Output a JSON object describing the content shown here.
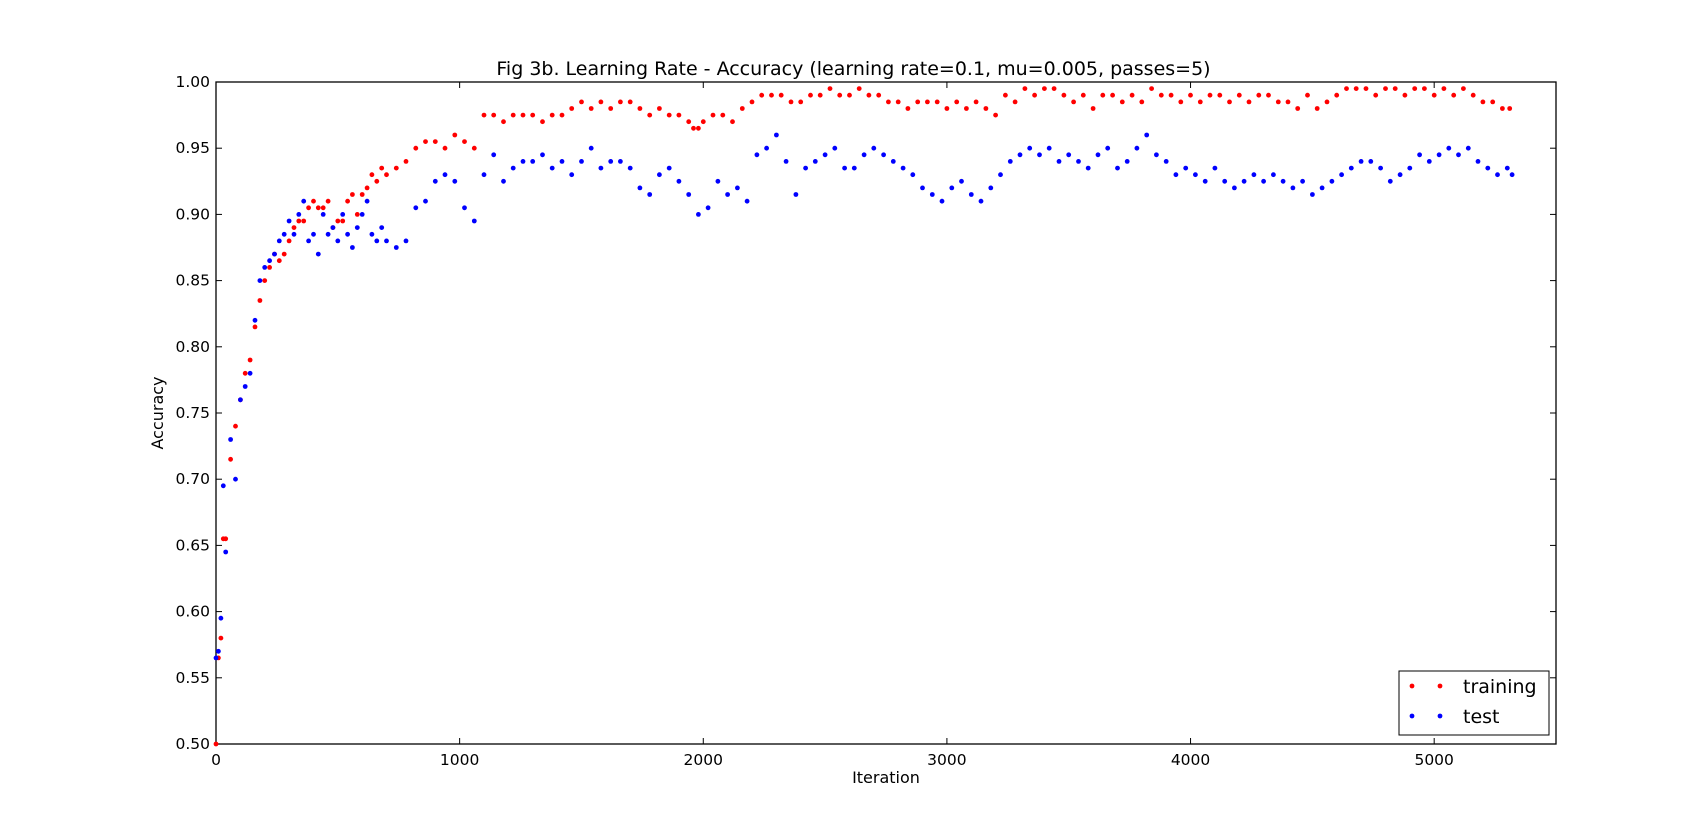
{
  "chart_data": {
    "type": "scatter",
    "title": "Fig 3b. Learning Rate - Accuracy (learning rate=0.1, mu=0.005, passes=5)",
    "xlabel": "Iteration",
    "ylabel": "Accuracy",
    "xlim": [
      0,
      5500
    ],
    "ylim": [
      0.5,
      1.0
    ],
    "x_ticks": [
      0,
      1000,
      2000,
      3000,
      4000,
      5000
    ],
    "x_tick_labels": [
      "0",
      "1000",
      "2000",
      "3000",
      "4000",
      "5000"
    ],
    "y_ticks": [
      0.5,
      0.55,
      0.6,
      0.65,
      0.7,
      0.75,
      0.8,
      0.85,
      0.9,
      0.95,
      1.0
    ],
    "y_tick_labels": [
      "0.50",
      "0.55",
      "0.60",
      "0.65",
      "0.70",
      "0.75",
      "0.80",
      "0.85",
      "0.90",
      "0.95",
      "1.00"
    ],
    "grid": false,
    "legend_position": "bottom-right",
    "series": [
      {
        "name": "training",
        "color": "#ff0000",
        "x": [
          0,
          10,
          20,
          30,
          40,
          60,
          80,
          100,
          120,
          140,
          160,
          180,
          200,
          220,
          240,
          260,
          280,
          300,
          320,
          340,
          360,
          380,
          400,
          420,
          440,
          460,
          480,
          500,
          520,
          540,
          560,
          580,
          600,
          620,
          640,
          660,
          680,
          700,
          740,
          780,
          820,
          860,
          900,
          940,
          980,
          1020,
          1060,
          1100,
          1140,
          1180,
          1220,
          1260,
          1300,
          1340,
          1380,
          1420,
          1460,
          1500,
          1540,
          1580,
          1620,
          1660,
          1700,
          1740,
          1780,
          1820,
          1860,
          1900,
          1940,
          1960,
          1980,
          2000,
          2040,
          2080,
          2120,
          2160,
          2200,
          2240,
          2280,
          2320,
          2360,
          2400,
          2440,
          2480,
          2520,
          2560,
          2600,
          2640,
          2680,
          2720,
          2760,
          2800,
          2840,
          2880,
          2920,
          2960,
          3000,
          3040,
          3080,
          3120,
          3160,
          3200,
          3240,
          3280,
          3320,
          3360,
          3400,
          3440,
          3480,
          3520,
          3560,
          3600,
          3640,
          3680,
          3720,
          3760,
          3800,
          3840,
          3880,
          3920,
          3960,
          4000,
          4040,
          4080,
          4120,
          4160,
          4200,
          4240,
          4280,
          4320,
          4360,
          4400,
          4440,
          4480,
          4520,
          4560,
          4600,
          4640,
          4680,
          4720,
          4760,
          4800,
          4840,
          4880,
          4920,
          4960,
          5000,
          5040,
          5080,
          5120,
          5160,
          5200,
          5240,
          5280,
          5310
        ],
        "y": [
          0.5,
          0.565,
          0.58,
          0.655,
          0.655,
          0.715,
          0.74,
          0.76,
          0.78,
          0.79,
          0.815,
          0.835,
          0.85,
          0.86,
          0.87,
          0.865,
          0.87,
          0.88,
          0.89,
          0.895,
          0.895,
          0.905,
          0.91,
          0.905,
          0.905,
          0.91,
          0.89,
          0.895,
          0.895,
          0.91,
          0.915,
          0.9,
          0.915,
          0.92,
          0.93,
          0.925,
          0.935,
          0.93,
          0.935,
          0.94,
          0.95,
          0.955,
          0.955,
          0.95,
          0.96,
          0.955,
          0.95,
          0.975,
          0.975,
          0.97,
          0.975,
          0.975,
          0.975,
          0.97,
          0.975,
          0.975,
          0.98,
          0.985,
          0.98,
          0.985,
          0.98,
          0.985,
          0.985,
          0.98,
          0.975,
          0.98,
          0.975,
          0.975,
          0.97,
          0.965,
          0.965,
          0.97,
          0.975,
          0.975,
          0.97,
          0.98,
          0.985,
          0.99,
          0.99,
          0.99,
          0.985,
          0.985,
          0.99,
          0.99,
          0.995,
          0.99,
          0.99,
          0.995,
          0.99,
          0.99,
          0.985,
          0.985,
          0.98,
          0.985,
          0.985,
          0.985,
          0.98,
          0.985,
          0.98,
          0.985,
          0.98,
          0.975,
          0.99,
          0.985,
          0.995,
          0.99,
          0.995,
          0.995,
          0.99,
          0.985,
          0.99,
          0.98,
          0.99,
          0.99,
          0.985,
          0.99,
          0.985,
          0.995,
          0.99,
          0.99,
          0.985,
          0.99,
          0.985,
          0.99,
          0.99,
          0.985,
          0.99,
          0.985,
          0.99,
          0.99,
          0.985,
          0.985,
          0.98,
          0.99,
          0.98,
          0.985,
          0.99,
          0.995,
          0.995,
          0.995,
          0.99,
          0.995,
          0.995,
          0.99,
          0.995,
          0.995,
          0.99,
          0.995,
          0.99,
          0.995,
          0.99,
          0.985,
          0.985,
          0.98,
          0.98
        ]
      },
      {
        "name": "test",
        "color": "#0000ff",
        "x": [
          0,
          10,
          20,
          30,
          40,
          60,
          80,
          100,
          120,
          140,
          160,
          180,
          200,
          220,
          240,
          260,
          280,
          300,
          320,
          340,
          360,
          380,
          400,
          420,
          440,
          460,
          480,
          500,
          520,
          540,
          560,
          580,
          600,
          620,
          640,
          660,
          680,
          700,
          740,
          780,
          820,
          860,
          900,
          940,
          980,
          1020,
          1060,
          1100,
          1140,
          1180,
          1220,
          1260,
          1300,
          1340,
          1380,
          1420,
          1460,
          1500,
          1540,
          1580,
          1620,
          1660,
          1700,
          1740,
          1780,
          1820,
          1860,
          1900,
          1940,
          1980,
          2020,
          2060,
          2100,
          2140,
          2180,
          2220,
          2260,
          2300,
          2340,
          2380,
          2420,
          2460,
          2500,
          2540,
          2580,
          2620,
          2660,
          2700,
          2740,
          2780,
          2820,
          2860,
          2900,
          2940,
          2980,
          3020,
          3060,
          3100,
          3140,
          3180,
          3220,
          3260,
          3300,
          3340,
          3380,
          3420,
          3460,
          3500,
          3540,
          3580,
          3620,
          3660,
          3700,
          3740,
          3780,
          3820,
          3860,
          3900,
          3940,
          3980,
          4020,
          4060,
          4100,
          4140,
          4180,
          4220,
          4260,
          4300,
          4340,
          4380,
          4420,
          4460,
          4500,
          4540,
          4580,
          4620,
          4660,
          4700,
          4740,
          4780,
          4820,
          4860,
          4900,
          4940,
          4980,
          5020,
          5060,
          5100,
          5140,
          5180,
          5220,
          5260,
          5300,
          5320
        ],
        "y": [
          0.565,
          0.57,
          0.595,
          0.695,
          0.645,
          0.73,
          0.7,
          0.76,
          0.77,
          0.78,
          0.82,
          0.85,
          0.86,
          0.865,
          0.87,
          0.88,
          0.885,
          0.895,
          0.885,
          0.9,
          0.91,
          0.88,
          0.885,
          0.87,
          0.9,
          0.885,
          0.89,
          0.88,
          0.9,
          0.885,
          0.875,
          0.89,
          0.9,
          0.91,
          0.885,
          0.88,
          0.89,
          0.88,
          0.875,
          0.88,
          0.905,
          0.91,
          0.925,
          0.93,
          0.925,
          0.905,
          0.895,
          0.93,
          0.945,
          0.925,
          0.935,
          0.94,
          0.94,
          0.945,
          0.935,
          0.94,
          0.93,
          0.94,
          0.95,
          0.935,
          0.94,
          0.94,
          0.935,
          0.92,
          0.915,
          0.93,
          0.935,
          0.925,
          0.915,
          0.9,
          0.905,
          0.925,
          0.915,
          0.92,
          0.91,
          0.945,
          0.95,
          0.96,
          0.94,
          0.915,
          0.935,
          0.94,
          0.945,
          0.95,
          0.935,
          0.935,
          0.945,
          0.95,
          0.945,
          0.94,
          0.935,
          0.93,
          0.92,
          0.915,
          0.91,
          0.92,
          0.925,
          0.915,
          0.91,
          0.92,
          0.93,
          0.94,
          0.945,
          0.95,
          0.945,
          0.95,
          0.94,
          0.945,
          0.94,
          0.935,
          0.945,
          0.95,
          0.935,
          0.94,
          0.95,
          0.96,
          0.945,
          0.94,
          0.93,
          0.935,
          0.93,
          0.925,
          0.935,
          0.925,
          0.92,
          0.925,
          0.93,
          0.925,
          0.93,
          0.925,
          0.92,
          0.925,
          0.915,
          0.92,
          0.925,
          0.93,
          0.935,
          0.94,
          0.94,
          0.935,
          0.925,
          0.93,
          0.935,
          0.945,
          0.94,
          0.945,
          0.95,
          0.945,
          0.95,
          0.94,
          0.935,
          0.93,
          0.935,
          0.93
        ]
      }
    ]
  }
}
